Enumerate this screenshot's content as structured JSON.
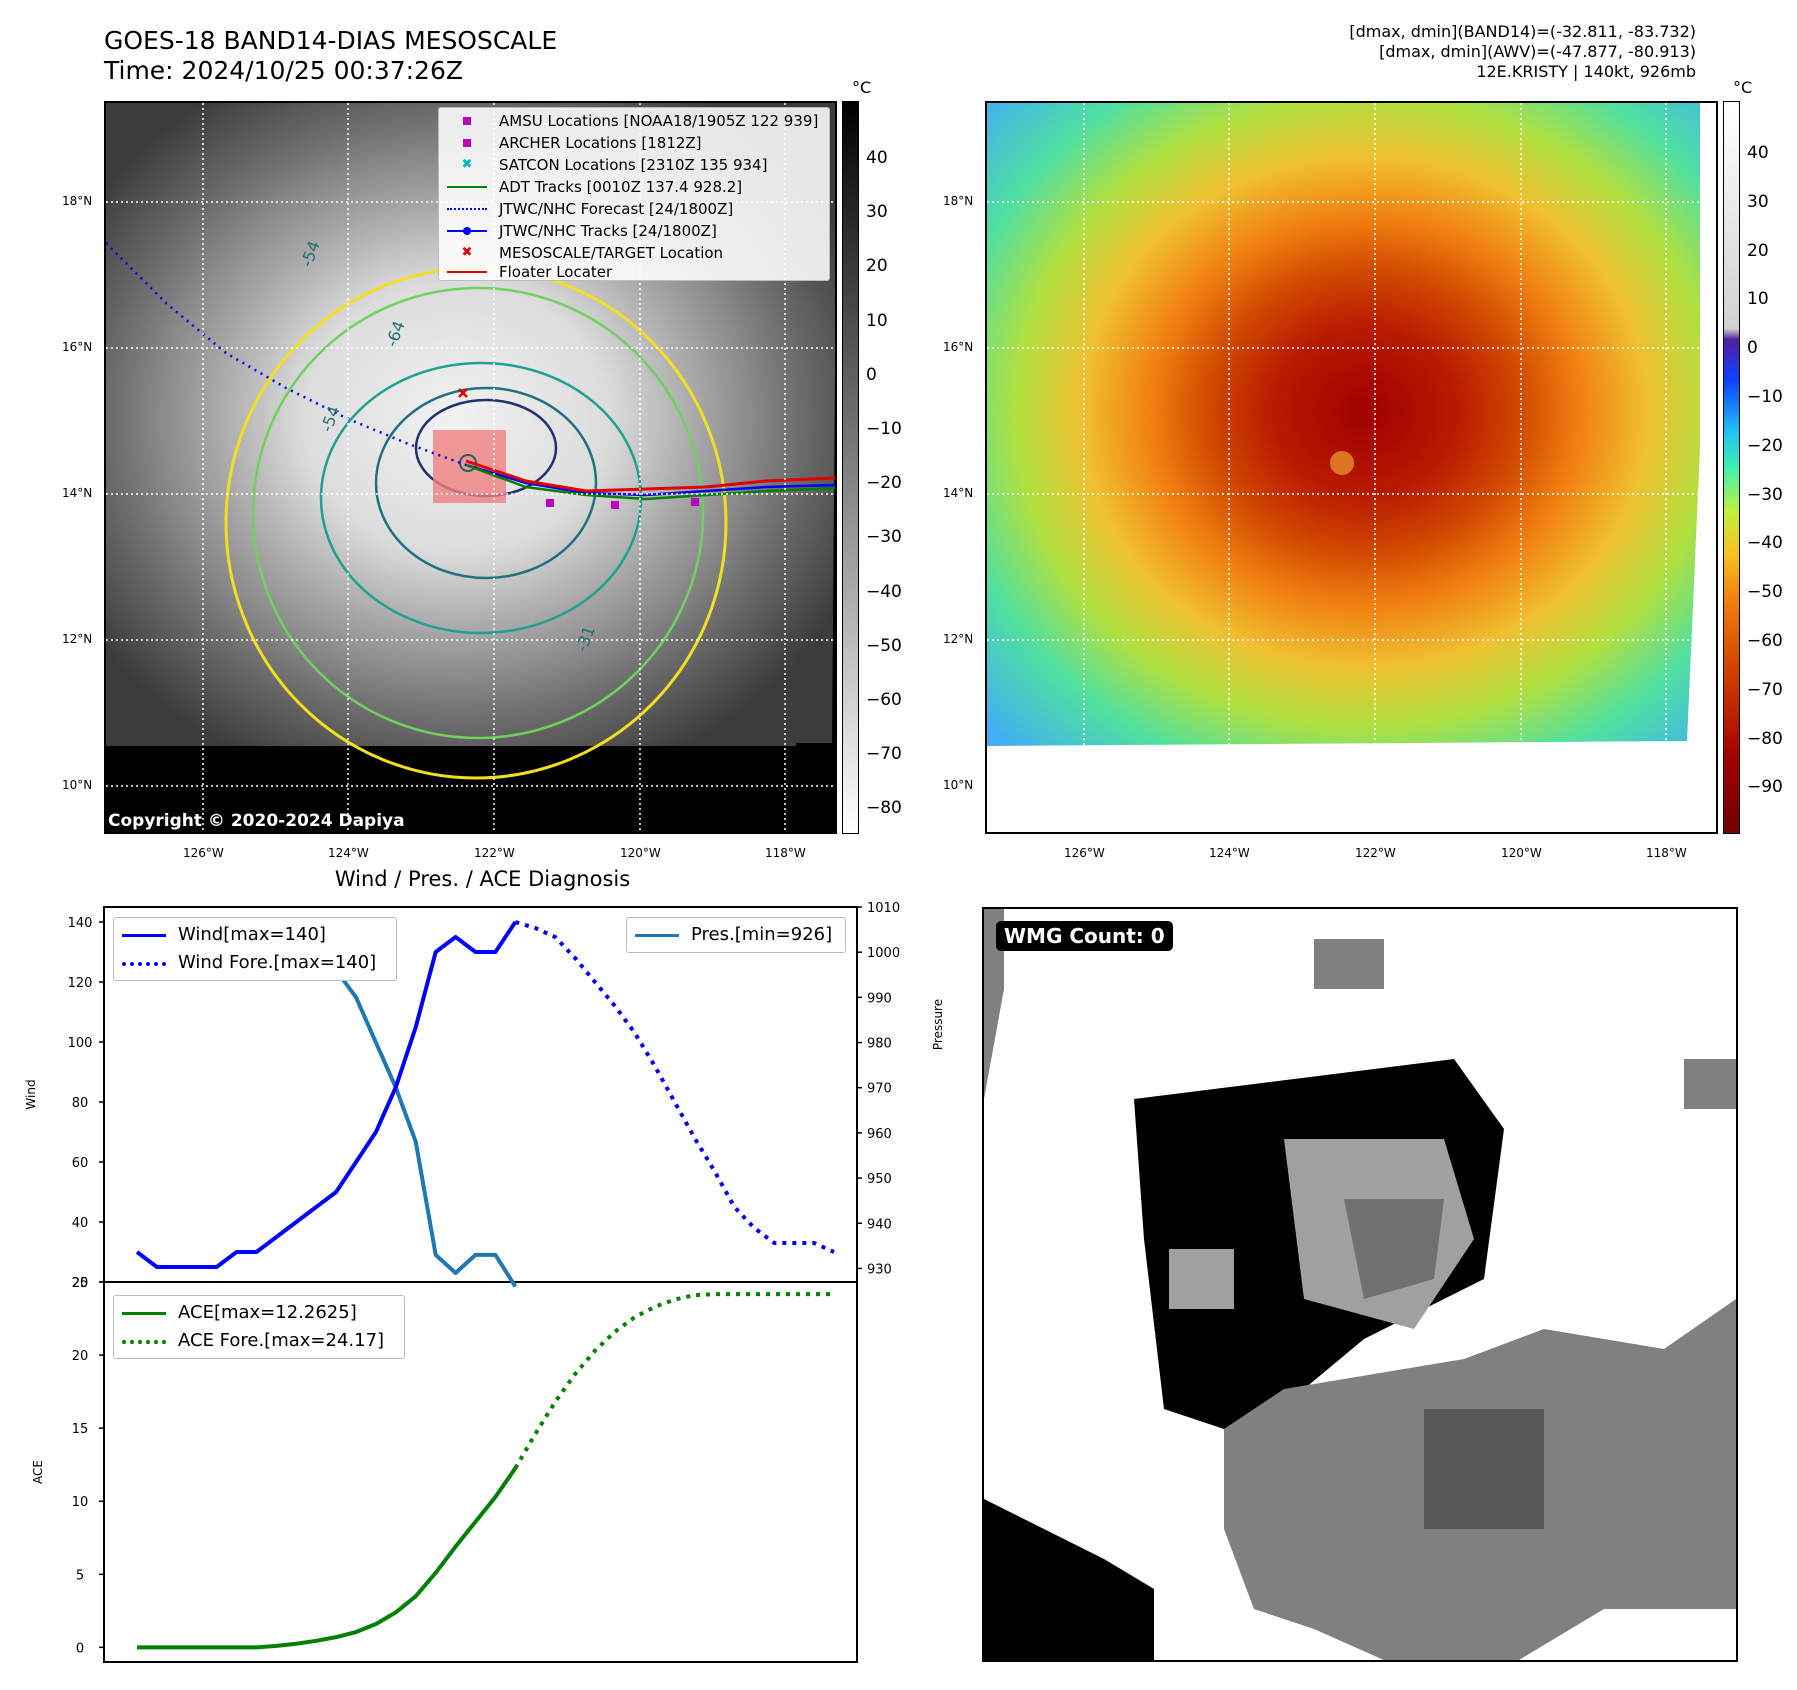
{
  "header": {
    "title_line1": "GOES-18 BAND14-DIAS MESOSCALE",
    "title_line2": "Time: 2024/10/25 00:37:26Z",
    "info_line1": "[dmax, dmin](BAND14)=(-32.811, -83.732)",
    "info_line2": "[dmax, dmin](AWV)=(-47.877, -80.913)",
    "info_line3": "12E.KRISTY | 140kt, 926mb"
  },
  "map_axes": {
    "lat_labels": [
      "18°N",
      "16°N",
      "14°N",
      "12°N",
      "10°N"
    ],
    "lon_labels": [
      "126°W",
      "124°W",
      "122°W",
      "120°W",
      "118°W"
    ]
  },
  "ir_panel": {
    "copyright": "Copyright © 2020-2024 Dapiya",
    "colorbar_unit": "°C",
    "colorbar_ticks": [
      "40",
      "30",
      "20",
      "10",
      "0",
      "−10",
      "−20",
      "−30",
      "−40",
      "−50",
      "−60",
      "−70",
      "−80"
    ],
    "contour_labels": [
      "-54",
      "-64",
      "-54",
      "-31"
    ],
    "legend": [
      {
        "label": "AMSU Locations [NOAA18/1905Z 122 939]",
        "color": "#c000c0",
        "marker": "square"
      },
      {
        "label": "ARCHER Locations [1812Z]",
        "color": "#c000c0",
        "marker": "square"
      },
      {
        "label": "SATCON Locations [2310Z 135 934]",
        "color": "#00b8b8",
        "marker": "x"
      },
      {
        "label": "ADT Tracks [0010Z 137.4 928.2]",
        "color": "#008000",
        "marker": "line"
      },
      {
        "label": "JTWC/NHC Forecast [24/1800Z]",
        "color": "#0000ff",
        "marker": "dotted"
      },
      {
        "label": "JTWC/NHC Tracks [24/1800Z]",
        "color": "#0000ff",
        "marker": "line-dot"
      },
      {
        "label": "MESOSCALE/TARGET Location",
        "color": "#e00000",
        "marker": "x"
      },
      {
        "label": "Floater Locater",
        "color": "#e00000",
        "marker": "line"
      }
    ]
  },
  "awv_panel": {
    "colorbar_unit": "°C",
    "colorbar_ticks": [
      "40",
      "30",
      "20",
      "10",
      "0",
      "−10",
      "−20",
      "−30",
      "−40",
      "−50",
      "−60",
      "−70",
      "−80",
      "−90"
    ]
  },
  "wmg_panel": {
    "label": "WMG Count: 0"
  },
  "chart_data": [
    {
      "type": "line",
      "title": "Wind / Pres. / ACE Diagnosis",
      "ylabel": "Wind",
      "y2label": "Pressure",
      "ylim": [
        20,
        145
      ],
      "y2lim": [
        927,
        1010
      ],
      "yticks": [
        20,
        40,
        60,
        80,
        100,
        120,
        140
      ],
      "y2ticks": [
        930,
        940,
        950,
        960,
        970,
        980,
        990,
        1000,
        1010
      ],
      "x": [
        0,
        1,
        2,
        3,
        4,
        5,
        6,
        7,
        8,
        9,
        10,
        11,
        12,
        13,
        14,
        15,
        16,
        17,
        18,
        19,
        20,
        21,
        22,
        23,
        24,
        25,
        26,
        27,
        28,
        29,
        30,
        31,
        32,
        33,
        34,
        35
      ],
      "series": [
        {
          "name": "Wind[max=140]",
          "color": "#0000ff",
          "style": "solid",
          "axis": "left",
          "x": [
            0,
            1,
            2,
            3,
            4,
            5,
            6,
            7,
            8,
            9,
            10,
            11,
            12,
            13,
            14,
            15,
            16,
            17,
            18,
            19
          ],
          "values": [
            30,
            25,
            25,
            25,
            25,
            30,
            30,
            35,
            40,
            45,
            50,
            60,
            70,
            85,
            105,
            130,
            135,
            130,
            130,
            140
          ]
        },
        {
          "name": "Wind Fore.[max=140]",
          "color": "#0000ff",
          "style": "dotted",
          "axis": "left",
          "x": [
            19,
            20,
            21,
            22,
            23,
            24,
            25,
            26,
            27,
            28,
            29,
            30,
            31,
            32,
            33,
            34,
            35
          ],
          "values": [
            140,
            138,
            135,
            128,
            120,
            112,
            103,
            92,
            80,
            68,
            57,
            45,
            38,
            33,
            33,
            33,
            30
          ]
        },
        {
          "name": "Pres.[min=926]",
          "color": "#1f77b4",
          "style": "solid",
          "axis": "right",
          "x": [
            0,
            1,
            2,
            3,
            4,
            5,
            6,
            7,
            8,
            9,
            10,
            11,
            12,
            13,
            14,
            15,
            16,
            17,
            18,
            19
          ],
          "values": [
            1006,
            1006,
            1006,
            1007,
            1007,
            1007,
            1006,
            1005,
            1003,
            1000,
            996,
            990,
            980,
            970,
            958,
            933,
            929,
            933,
            933,
            926
          ]
        }
      ]
    },
    {
      "type": "line",
      "ylabel": "ACE",
      "ylim": [
        -1,
        25
      ],
      "yticks": [
        0,
        5,
        10,
        15,
        20,
        25
      ],
      "series": [
        {
          "name": "ACE[max=12.2625]",
          "color": "#008000",
          "style": "solid",
          "x": [
            0,
            1,
            2,
            3,
            4,
            5,
            6,
            7,
            8,
            9,
            10,
            11,
            12,
            13,
            14,
            15,
            16,
            17,
            18,
            19
          ],
          "values": [
            0,
            0,
            0,
            0,
            0,
            0,
            0,
            0.1,
            0.25,
            0.45,
            0.7,
            1.05,
            1.6,
            2.4,
            3.5,
            5.1,
            6.9,
            8.6,
            10.3,
            12.26
          ]
        },
        {
          "name": "ACE Fore.[max=24.17]",
          "color": "#008000",
          "style": "dotted",
          "x": [
            19,
            20,
            21,
            22,
            23,
            24,
            25,
            26,
            27,
            28,
            29,
            30,
            31,
            32,
            33,
            34,
            35
          ],
          "values": [
            12.26,
            14.6,
            16.8,
            18.7,
            20.3,
            21.6,
            22.6,
            23.3,
            23.8,
            24.1,
            24.17,
            24.17,
            24.17,
            24.17,
            24.17,
            24.17,
            24.17
          ]
        }
      ]
    }
  ]
}
